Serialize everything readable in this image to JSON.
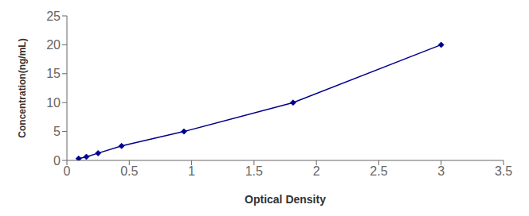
{
  "chart_data": {
    "type": "line",
    "x": [
      0.094,
      0.156,
      0.25,
      0.438,
      0.938,
      1.813,
      3.0
    ],
    "values": [
      0.312,
      0.625,
      1.25,
      2.5,
      5.0,
      10.0,
      20.0
    ],
    "color": "#00008B",
    "marker": "diamond",
    "xlabel": "Optical Density",
    "ylabel": "Concentration(ng/mL)",
    "xlim": [
      0,
      3.5
    ],
    "ylim": [
      0,
      25
    ],
    "xticks": [
      0,
      0.5,
      1.0,
      1.5,
      2.0,
      2.5,
      3.0,
      3.5
    ],
    "yticks": [
      0,
      5,
      10,
      15,
      20,
      25
    ],
    "grid": false
  }
}
